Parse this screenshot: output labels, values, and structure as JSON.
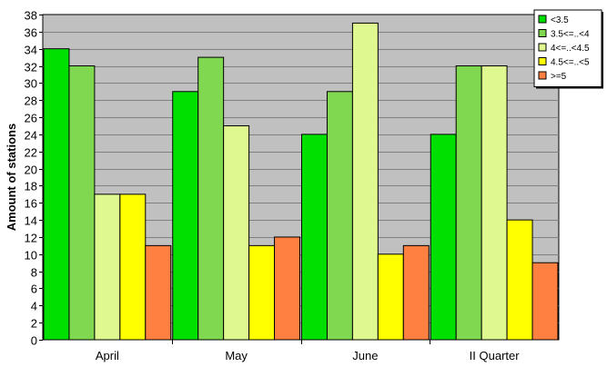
{
  "chart_data": {
    "type": "bar",
    "categories": [
      "April",
      "May",
      "June",
      "II Quarter"
    ],
    "series": [
      {
        "name": "<3.5",
        "color": "#00e000",
        "values": [
          34,
          29,
          24,
          24
        ]
      },
      {
        "name": "3.5<=..<4",
        "color": "#80d850",
        "values": [
          32,
          33,
          29,
          32
        ]
      },
      {
        "name": "4<=..<4.5",
        "color": "#e0f890",
        "values": [
          17,
          25,
          37,
          32
        ]
      },
      {
        "name": "4.5<=..<5",
        "color": "#ffff00",
        "values": [
          17,
          11,
          10,
          14
        ]
      },
      {
        "name": ">=5",
        "color": "#ff8040",
        "values": [
          11,
          12,
          11,
          9
        ]
      }
    ],
    "xlabel": "",
    "ylabel": "Amount of stations",
    "ylim": [
      0,
      38
    ],
    "yticks": [
      0,
      2,
      4,
      6,
      8,
      10,
      12,
      14,
      16,
      18,
      20,
      22,
      24,
      26,
      28,
      30,
      32,
      34,
      36,
      38
    ],
    "grid": true,
    "legend": "top-right",
    "plot_background": "#c0c0c0"
  }
}
